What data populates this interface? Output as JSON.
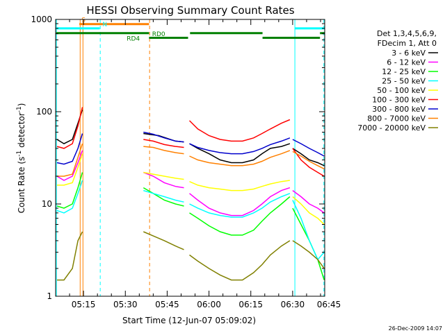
{
  "chart_data": {
    "type": "line",
    "title": "HESSI Observing Summary Count Rates",
    "xlabel": "Start Time (12-Jun-07 05:09:02)",
    "ylabel_main": "Count Rate (s",
    "ylabel_sup1": "-1",
    "ylabel_mid": " detector",
    "ylabel_sup2": "-1",
    "ylabel_end": ")",
    "yscale": "log",
    "ylim": [
      1,
      1000
    ],
    "xlim_minutes": [
      5.0,
      101.5
    ],
    "x_ticks": [
      {
        "label": "05:15",
        "m": 15
      },
      {
        "label": "05:30",
        "m": 30
      },
      {
        "label": "05:45",
        "m": 45
      },
      {
        "label": "06:00",
        "m": 60
      },
      {
        "label": "06:15",
        "m": 75
      },
      {
        "label": "06:30",
        "m": 90
      },
      {
        "label": "06:45",
        "m": 105
      }
    ],
    "y_ticks": [
      {
        "label": "1",
        "v": 1
      },
      {
        "label": "10",
        "v": 10
      },
      {
        "label": "100",
        "v": 100
      },
      {
        "label": "1000",
        "v": 1000
      }
    ],
    "legend_header": [
      "Det 1,3,4,5,6,9,",
      "FDecim 1, Att 0"
    ],
    "legend_position": "right",
    "series": [
      {
        "name": "3 - 6 keV",
        "color": "#000000",
        "segments": [
          [
            [
              5.5,
              50
            ],
            [
              8,
              45
            ],
            [
              11,
              50
            ],
            [
              13,
              75
            ],
            [
              14.6,
              105
            ]
          ],
          [
            [
              36.5,
              58
            ],
            [
              42,
              55
            ],
            [
              48,
              48
            ],
            [
              51,
              47
            ]
          ],
          [
            [
              53,
              45
            ],
            [
              56,
              40
            ],
            [
              60,
              35
            ],
            [
              64,
              30
            ],
            [
              68,
              28
            ],
            [
              72,
              28
            ],
            [
              76,
              30
            ],
            [
              79,
              35
            ],
            [
              82,
              40
            ],
            [
              86,
              42
            ],
            [
              89,
              45
            ]
          ],
          [
            [
              90,
              40
            ],
            [
              93,
              35
            ],
            [
              96,
              30
            ],
            [
              99,
              28
            ],
            [
              101.3,
              26
            ]
          ]
        ]
      },
      {
        "name": "6 - 12 keV",
        "color": "#ff00ff",
        "segments": [
          [
            [
              5.5,
              20
            ],
            [
              8,
              18
            ],
            [
              11,
              20
            ],
            [
              13,
              28
            ],
            [
              14.6,
              38
            ]
          ],
          [
            [
              36.5,
              22
            ],
            [
              40,
              20
            ],
            [
              44,
              17
            ],
            [
              48,
              15.5
            ],
            [
              51,
              15
            ]
          ],
          [
            [
              53,
              13
            ],
            [
              56,
              11
            ],
            [
              60,
              9
            ],
            [
              64,
              8
            ],
            [
              68,
              7.5
            ],
            [
              72,
              7.5
            ],
            [
              76,
              8.5
            ],
            [
              79,
              10
            ],
            [
              82,
              12
            ],
            [
              86,
              14
            ],
            [
              89,
              15
            ]
          ],
          [
            [
              90,
              14
            ],
            [
              93,
              12
            ],
            [
              96,
              10
            ],
            [
              99,
              9
            ],
            [
              101.3,
              8
            ]
          ]
        ]
      },
      {
        "name": "12 - 25 keV",
        "color": "#00ff00",
        "segments": [
          [
            [
              5.5,
              9.5
            ],
            [
              8,
              9
            ],
            [
              11,
              10
            ],
            [
              13,
              15
            ],
            [
              14.6,
              22
            ]
          ],
          [
            [
              36.5,
              15
            ],
            [
              40,
              13
            ],
            [
              44,
              11
            ],
            [
              48,
              10
            ],
            [
              51,
              9.5
            ]
          ],
          [
            [
              53,
              8
            ],
            [
              56,
              7
            ],
            [
              60,
              5.8
            ],
            [
              64,
              5
            ],
            [
              68,
              4.6
            ],
            [
              72,
              4.6
            ],
            [
              76,
              5.2
            ],
            [
              79,
              6.5
            ],
            [
              82,
              8
            ],
            [
              86,
              10
            ],
            [
              89,
              12
            ]
          ],
          [
            [
              90,
              9
            ],
            [
              93,
              6
            ],
            [
              96,
              4
            ],
            [
              99,
              2.5
            ],
            [
              101.3,
              1.5
            ]
          ]
        ]
      },
      {
        "name": "25 - 50 keV",
        "color": "#00ffff",
        "segments": [
          [
            [
              5.5,
              8.5
            ],
            [
              8,
              8
            ],
            [
              11,
              9
            ],
            [
              13,
              13
            ],
            [
              14.6,
              18
            ]
          ],
          [
            [
              36.5,
              14
            ],
            [
              40,
              13
            ],
            [
              44,
              12
            ],
            [
              48,
              11
            ],
            [
              51,
              10.5
            ]
          ],
          [
            [
              53,
              10
            ],
            [
              56,
              9
            ],
            [
              60,
              8
            ],
            [
              64,
              7.5
            ],
            [
              68,
              7.2
            ],
            [
              72,
              7.2
            ],
            [
              76,
              8
            ],
            [
              79,
              9
            ],
            [
              82,
              10.5
            ],
            [
              86,
              12
            ],
            [
              89,
              13
            ]
          ],
          [
            [
              90,
              11
            ],
            [
              93,
              7
            ],
            [
              96,
              4
            ],
            [
              99,
              2.5
            ],
            [
              101.3,
              3
            ]
          ]
        ]
      },
      {
        "name": "50 - 100 keV",
        "color": "#ffff00",
        "segments": [
          [
            [
              5.5,
              16
            ],
            [
              8,
              16
            ],
            [
              11,
              17
            ],
            [
              13,
              25
            ],
            [
              14.6,
              35
            ]
          ],
          [
            [
              36.5,
              22
            ],
            [
              40,
              21
            ],
            [
              44,
              20
            ],
            [
              48,
              19
            ],
            [
              51,
              18.5
            ]
          ],
          [
            [
              53,
              17.5
            ],
            [
              56,
              16
            ],
            [
              60,
              15
            ],
            [
              64,
              14.5
            ],
            [
              68,
              14
            ],
            [
              72,
              14
            ],
            [
              76,
              14.5
            ],
            [
              79,
              15.5
            ],
            [
              82,
              16.5
            ],
            [
              86,
              17.5
            ],
            [
              89,
              18
            ]
          ],
          [
            [
              90,
              12
            ],
            [
              93,
              10
            ],
            [
              96,
              8
            ],
            [
              99,
              7
            ],
            [
              101.3,
              6
            ]
          ]
        ]
      },
      {
        "name": "100 - 300 keV",
        "color": "#ff0000",
        "segments": [
          [
            [
              5.5,
              42
            ],
            [
              8,
              40
            ],
            [
              11,
              45
            ],
            [
              13,
              70
            ],
            [
              14.6,
              112
            ]
          ],
          [
            [
              36.5,
              50
            ],
            [
              40,
              48
            ],
            [
              44,
              44
            ],
            [
              48,
              42
            ],
            [
              51,
              41
            ]
          ],
          [
            [
              53,
              80
            ],
            [
              56,
              65
            ],
            [
              60,
              55
            ],
            [
              64,
              50
            ],
            [
              68,
              48
            ],
            [
              72,
              48
            ],
            [
              76,
              52
            ],
            [
              79,
              58
            ],
            [
              82,
              65
            ],
            [
              86,
              75
            ],
            [
              89,
              82
            ]
          ],
          [
            [
              90,
              40
            ],
            [
              93,
              30
            ],
            [
              96,
              25
            ],
            [
              99,
              22
            ],
            [
              101.3,
              20
            ]
          ]
        ]
      },
      {
        "name": "300 - 800 keV",
        "color": "#0000cc",
        "segments": [
          [
            [
              5.5,
              28
            ],
            [
              8,
              27
            ],
            [
              11,
              29
            ],
            [
              13,
              40
            ],
            [
              14.6,
              58
            ]
          ],
          [
            [
              36.5,
              60
            ],
            [
              40,
              57
            ],
            [
              44,
              52
            ],
            [
              48,
              48
            ],
            [
              51,
              47
            ]
          ],
          [
            [
              53,
              45
            ],
            [
              56,
              41
            ],
            [
              60,
              38
            ],
            [
              64,
              36
            ],
            [
              68,
              35
            ],
            [
              72,
              35
            ],
            [
              76,
              37
            ],
            [
              79,
              40
            ],
            [
              82,
              44
            ],
            [
              86,
              48
            ],
            [
              89,
              52
            ]
          ],
          [
            [
              90,
              50
            ],
            [
              93,
              45
            ],
            [
              96,
              40
            ],
            [
              99,
              36
            ],
            [
              101.3,
              33
            ]
          ]
        ]
      },
      {
        "name": "800 - 7000 keV",
        "color": "#ff8000",
        "segments": [
          [
            [
              5.5,
              20
            ],
            [
              8,
              20
            ],
            [
              11,
              21
            ],
            [
              13,
              32
            ],
            [
              14.6,
              45
            ]
          ],
          [
            [
              36.5,
              42
            ],
            [
              40,
              41
            ],
            [
              44,
              38
            ],
            [
              48,
              36
            ],
            [
              51,
              35
            ]
          ],
          [
            [
              53,
              33
            ],
            [
              56,
              30
            ],
            [
              60,
              28
            ],
            [
              64,
              27
            ],
            [
              68,
              26
            ],
            [
              72,
              26
            ],
            [
              76,
              27
            ],
            [
              79,
              29
            ],
            [
              82,
              32
            ],
            [
              86,
              35
            ],
            [
              89,
              38
            ]
          ],
          [
            [
              90,
              37
            ],
            [
              93,
              33
            ],
            [
              96,
              29
            ],
            [
              99,
              26
            ],
            [
              101.3,
              24
            ]
          ]
        ]
      },
      {
        "name": "7000 - 20000 keV",
        "color": "#808000",
        "segments": [
          [
            [
              5.5,
              1.5
            ],
            [
              8,
              1.5
            ],
            [
              11,
              2
            ],
            [
              13,
              4
            ],
            [
              14.6,
              5
            ]
          ],
          [
            [
              36.5,
              5
            ],
            [
              40,
              4.5
            ],
            [
              44,
              4
            ],
            [
              48,
              3.5
            ],
            [
              51,
              3.2
            ]
          ],
          [
            [
              53,
              2.8
            ],
            [
              56,
              2.4
            ],
            [
              60,
              2
            ],
            [
              64,
              1.7
            ],
            [
              68,
              1.5
            ],
            [
              72,
              1.5
            ],
            [
              76,
              1.8
            ],
            [
              79,
              2.2
            ],
            [
              82,
              2.8
            ],
            [
              86,
              3.5
            ],
            [
              89,
              4
            ]
          ],
          [
            [
              90,
              4
            ],
            [
              93,
              3.5
            ],
            [
              96,
              3
            ],
            [
              99,
              2.5
            ],
            [
              101.3,
              2
            ]
          ]
        ]
      }
    ],
    "flags": [
      {
        "label": "S",
        "color": "#ff8000",
        "from": 13.5,
        "to": 38.5,
        "y": 890
      },
      {
        "label": "N",
        "color": "#00ffff",
        "from": 5.2,
        "to": 20.8,
        "y": 800,
        "label_at": 21.8
      },
      {
        "label": "",
        "color": "#00ffff",
        "from": 90.8,
        "to": 101.5,
        "y": 800
      },
      {
        "label": "RD0",
        "color": "#008000",
        "from": 5.2,
        "to": 38.5,
        "y": 710,
        "label_at": 39.6
      },
      {
        "label": "RD4",
        "color": "#008000",
        "from": 38.5,
        "to": 52.5,
        "y": 632,
        "label_at": 30.5
      },
      {
        "label": "",
        "color": "#008000",
        "from": 53.2,
        "to": 79.2,
        "y": 710
      },
      {
        "label": "",
        "color": "#008000",
        "from": 79.2,
        "to": 99.8,
        "y": 632
      },
      {
        "label": "",
        "color": "#008000",
        "from": 99.8,
        "to": 101.5,
        "y": 710
      }
    ],
    "vlines": [
      {
        "m": 5.3,
        "color": "#00ffff",
        "dashed": false
      },
      {
        "m": 13.8,
        "color": "#ff8000",
        "dashed": false
      },
      {
        "m": 14.8,
        "color": "#ff8000",
        "dashed": false
      },
      {
        "m": 21.0,
        "color": "#00ffff",
        "dashed": true
      },
      {
        "m": 38.7,
        "color": "#ff8000",
        "dashed": true
      },
      {
        "m": 90.8,
        "color": "#00ffff",
        "dashed": false
      },
      {
        "m": 101.2,
        "color": "#00ffff",
        "dashed": true
      }
    ],
    "timestamp": "26-Dec-2009 14:07"
  }
}
